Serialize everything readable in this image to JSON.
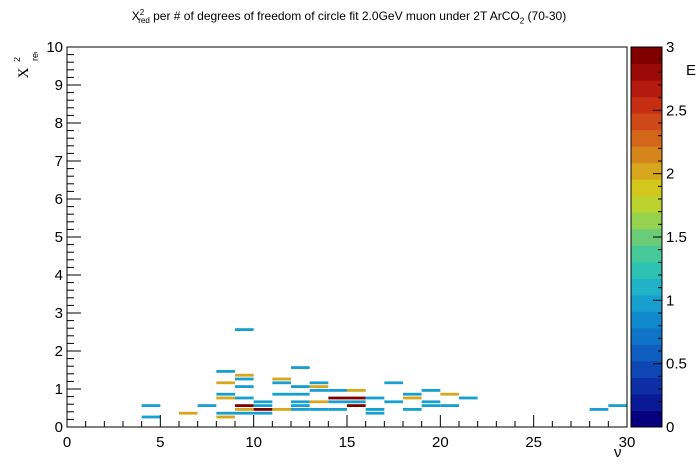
{
  "title": {
    "main": "X",
    "sup": "2",
    "sub": "red",
    "rest": " per # of degrees of freedom of circle fit 2.0GeV muon under 2T ArCO",
    "sub2": "2",
    "rest2": " (70-30)"
  },
  "axes": {
    "xlabel": "ν",
    "ylabel_main": "X",
    "ylabel_sup": "2",
    "ylabel_sub": "red",
    "zlabel_partial": "E"
  },
  "chart_data": {
    "type": "heatmap",
    "xlim": [
      0,
      30
    ],
    "ylim": [
      0,
      10
    ],
    "zlim": [
      0,
      3
    ],
    "x_ticks": [
      0,
      5,
      10,
      15,
      20,
      25,
      30
    ],
    "y_ticks": [
      0,
      1,
      2,
      3,
      4,
      5,
      6,
      7,
      8,
      9,
      10
    ],
    "z_ticks": [
      0,
      0.5,
      1,
      1.5,
      2,
      2.5,
      3
    ],
    "x_bin_width": 1,
    "y_bin_width": 0.1,
    "cells": [
      {
        "x": 4,
        "y": 0.2,
        "z": 1
      },
      {
        "x": 4,
        "y": 0.5,
        "z": 1
      },
      {
        "x": 6,
        "y": 0.3,
        "z": 2
      },
      {
        "x": 7,
        "y": 0.5,
        "z": 1
      },
      {
        "x": 8,
        "y": 0.2,
        "z": 2
      },
      {
        "x": 8,
        "y": 0.3,
        "z": 1
      },
      {
        "x": 8,
        "y": 0.7,
        "z": 2
      },
      {
        "x": 8,
        "y": 0.8,
        "z": 1
      },
      {
        "x": 8,
        "y": 1.1,
        "z": 2
      },
      {
        "x": 8,
        "y": 1.4,
        "z": 1
      },
      {
        "x": 9,
        "y": 0.3,
        "z": 1
      },
      {
        "x": 9,
        "y": 0.4,
        "z": 2
      },
      {
        "x": 9,
        "y": 0.5,
        "z": 3
      },
      {
        "x": 9,
        "y": 0.7,
        "z": 1
      },
      {
        "x": 9,
        "y": 1.0,
        "z": 1
      },
      {
        "x": 9,
        "y": 1.2,
        "z": 1
      },
      {
        "x": 9,
        "y": 1.3,
        "z": 2
      },
      {
        "x": 9,
        "y": 2.5,
        "z": 1
      },
      {
        "x": 10,
        "y": 0.3,
        "z": 1
      },
      {
        "x": 10,
        "y": 0.4,
        "z": 3
      },
      {
        "x": 10,
        "y": 0.5,
        "z": 1
      },
      {
        "x": 10,
        "y": 0.6,
        "z": 1
      },
      {
        "x": 11,
        "y": 0.4,
        "z": 2
      },
      {
        "x": 11,
        "y": 0.8,
        "z": 1
      },
      {
        "x": 11,
        "y": 1.1,
        "z": 1
      },
      {
        "x": 11,
        "y": 1.2,
        "z": 2
      },
      {
        "x": 12,
        "y": 0.4,
        "z": 1
      },
      {
        "x": 12,
        "y": 0.5,
        "z": 1
      },
      {
        "x": 12,
        "y": 0.6,
        "z": 1
      },
      {
        "x": 12,
        "y": 0.8,
        "z": 1
      },
      {
        "x": 12,
        "y": 1.0,
        "z": 1
      },
      {
        "x": 12,
        "y": 1.5,
        "z": 1
      },
      {
        "x": 13,
        "y": 0.4,
        "z": 1
      },
      {
        "x": 13,
        "y": 0.6,
        "z": 2
      },
      {
        "x": 13,
        "y": 0.9,
        "z": 1
      },
      {
        "x": 13,
        "y": 1.0,
        "z": 2
      },
      {
        "x": 13,
        "y": 1.1,
        "z": 1
      },
      {
        "x": 14,
        "y": 0.4,
        "z": 1
      },
      {
        "x": 14,
        "y": 0.6,
        "z": 1
      },
      {
        "x": 14,
        "y": 0.7,
        "z": 3
      },
      {
        "x": 14,
        "y": 0.9,
        "z": 1
      },
      {
        "x": 15,
        "y": 0.5,
        "z": 3
      },
      {
        "x": 15,
        "y": 0.6,
        "z": 1
      },
      {
        "x": 15,
        "y": 0.7,
        "z": 3
      },
      {
        "x": 15,
        "y": 0.9,
        "z": 2
      },
      {
        "x": 16,
        "y": 0.3,
        "z": 1
      },
      {
        "x": 16,
        "y": 0.4,
        "z": 1
      },
      {
        "x": 16,
        "y": 0.7,
        "z": 1
      },
      {
        "x": 17,
        "y": 0.6,
        "z": 1
      },
      {
        "x": 17,
        "y": 1.1,
        "z": 1
      },
      {
        "x": 18,
        "y": 0.4,
        "z": 1
      },
      {
        "x": 18,
        "y": 0.7,
        "z": 2
      },
      {
        "x": 18,
        "y": 0.8,
        "z": 1
      },
      {
        "x": 19,
        "y": 0.5,
        "z": 1
      },
      {
        "x": 19,
        "y": 0.6,
        "z": 1
      },
      {
        "x": 19,
        "y": 0.9,
        "z": 1
      },
      {
        "x": 20,
        "y": 0.5,
        "z": 1
      },
      {
        "x": 20,
        "y": 0.8,
        "z": 2
      },
      {
        "x": 21,
        "y": 0.7,
        "z": 1
      },
      {
        "x": 28,
        "y": 0.4,
        "z": 1
      },
      {
        "x": 29,
        "y": 0.5,
        "z": 1
      }
    ]
  },
  "colors": {
    "palette": [
      "#06007e",
      "#0a1a96",
      "#0c2fa6",
      "#0e46b4",
      "#0f5dbf",
      "#0f73c8",
      "#108acd",
      "#17a0cf",
      "#20b3c8",
      "#2ec2b3",
      "#46c898",
      "#6acc76",
      "#94d24f",
      "#bcd22d",
      "#d4c71c",
      "#d6a61c",
      "#d5861b",
      "#d4661a",
      "#cf4817",
      "#c62e13",
      "#b51a0e",
      "#9a0a07",
      "#800000"
    ]
  }
}
